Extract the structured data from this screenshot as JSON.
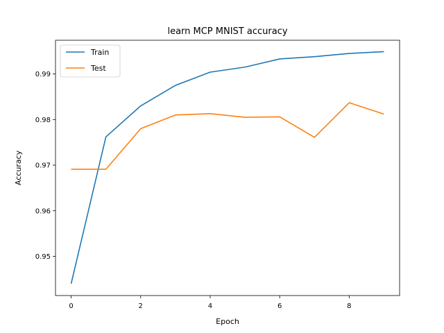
{
  "chart_data": {
    "type": "line",
    "title": "learn MCP MNIST accuracy",
    "xlabel": "Epoch",
    "ylabel": "Accuracy",
    "x": [
      0,
      1,
      2,
      3,
      4,
      5,
      6,
      7,
      8,
      9
    ],
    "xlim": [
      -0.45,
      9.45
    ],
    "ylim": [
      0.9414,
      0.9974
    ],
    "xticks": [
      0,
      2,
      4,
      6,
      8
    ],
    "xtick_labels": [
      "0",
      "2",
      "4",
      "6",
      "8"
    ],
    "yticks": [
      0.95,
      0.96,
      0.97,
      0.98,
      0.99
    ],
    "ytick_labels": [
      "0.95",
      "0.96",
      "0.97",
      "0.98",
      "0.99"
    ],
    "grid": false,
    "legend_position": "top-left",
    "series": [
      {
        "name": "Train",
        "color": "#1f77b4",
        "values": [
          0.944,
          0.9762,
          0.983,
          0.9875,
          0.9904,
          0.9915,
          0.9933,
          0.9938,
          0.9945,
          0.9949
        ]
      },
      {
        "name": "Test",
        "color": "#ff7f0e",
        "values": [
          0.9691,
          0.9691,
          0.978,
          0.981,
          0.9813,
          0.9805,
          0.9806,
          0.9761,
          0.9837,
          0.9812
        ]
      }
    ]
  }
}
